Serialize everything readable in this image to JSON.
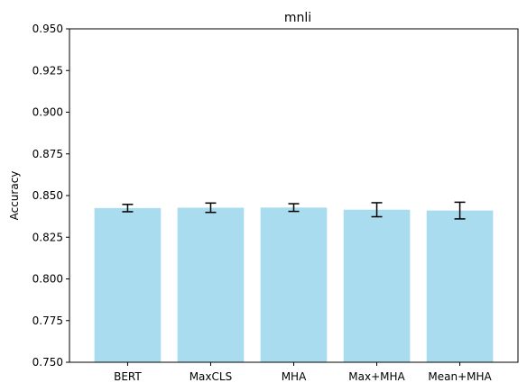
{
  "chart_data": {
    "type": "bar",
    "title": "mnli",
    "xlabel": "",
    "ylabel": "Accuracy",
    "categories": [
      "BERT",
      "MaxCLS",
      "MHA",
      "Max+MHA",
      "Mean+MHA"
    ],
    "values": [
      0.8425,
      0.8427,
      0.8428,
      0.8415,
      0.841
    ],
    "errors": [
      0.0022,
      0.0028,
      0.0023,
      0.0042,
      0.005
    ],
    "ylim": [
      0.75,
      0.95
    ],
    "yticks": [
      "0.750",
      "0.775",
      "0.800",
      "0.825",
      "0.850",
      "0.875",
      "0.900",
      "0.925",
      "0.950"
    ],
    "bar_color": "#a8dcee",
    "error_color": "#000000",
    "grid": false,
    "legend": "none"
  }
}
